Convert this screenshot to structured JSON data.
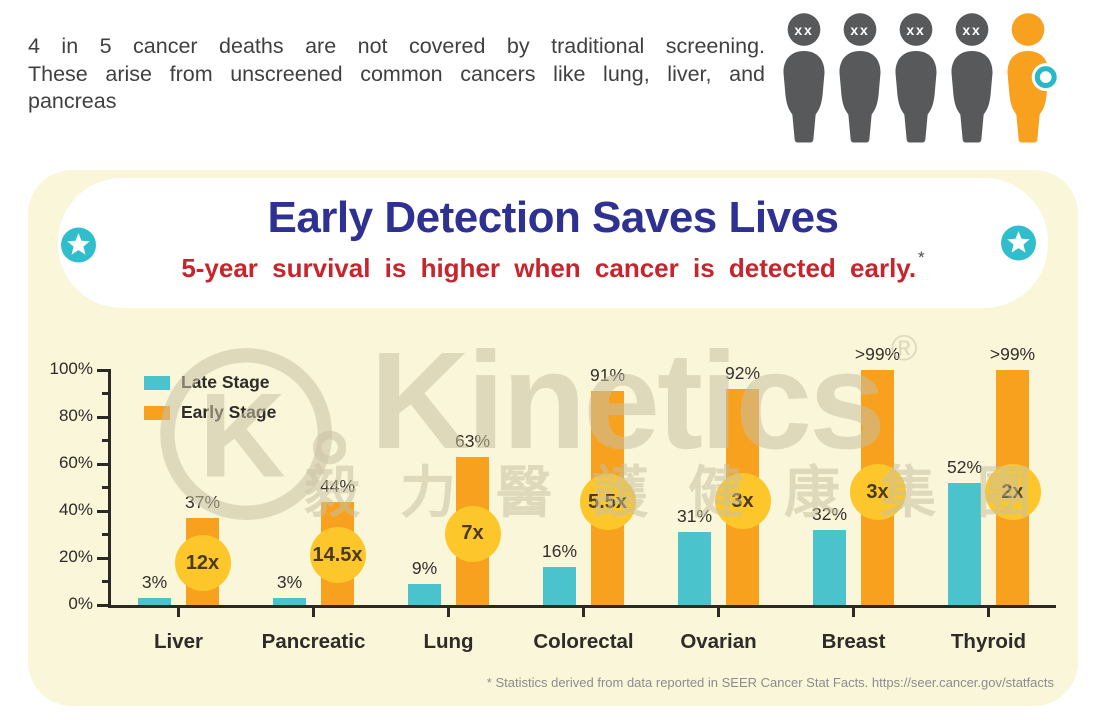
{
  "header": {
    "lines": [
      "4 in 5 cancer deaths are not covered by traditional screening.",
      "These arise from unscreened common cancers like lung, liver, and",
      "pancreas"
    ]
  },
  "people": {
    "figures": [
      {
        "style": "gray",
        "head_label": "xx",
        "badge": false
      },
      {
        "style": "gray",
        "head_label": "xx",
        "badge": false
      },
      {
        "style": "gray",
        "head_label": "xx",
        "badge": false
      },
      {
        "style": "gray",
        "head_label": "xx",
        "badge": false
      },
      {
        "style": "orange",
        "head_label": "",
        "badge": true
      }
    ]
  },
  "banner": {
    "title": "Early Detection Saves Lives",
    "subtitle": "5-year survival is higher when cancer is detected early.",
    "footnote_marker": "*"
  },
  "watermark": {
    "brand": "Kinetics",
    "registered": "®",
    "chinese": "毅力醫護健康集團"
  },
  "chart_data": {
    "type": "bar",
    "title": "Early Detection Saves Lives",
    "subtitle": "5-year survival is higher when cancer is detected early.*",
    "categories": [
      "Liver",
      "Pancreatic",
      "Lung",
      "Colorectal",
      "Ovarian",
      "Breast",
      "Thyroid"
    ],
    "series": [
      {
        "name": "Late Stage",
        "color": "#4BC3CD",
        "values": [
          3,
          3,
          9,
          16,
          31,
          32,
          52
        ],
        "labels": [
          "3%",
          "3%",
          "9%",
          "16%",
          "31%",
          "32%",
          "52%"
        ]
      },
      {
        "name": "Early Stage",
        "color": "#F7A11E",
        "values": [
          37,
          44,
          63,
          91,
          92,
          100,
          100
        ],
        "labels": [
          "37%",
          "44%",
          "63%",
          "91%",
          "92%",
          ">99%",
          ">99%"
        ]
      }
    ],
    "multipliers": [
      "12x",
      "14.5x",
      "7x",
      "5.5x",
      "3x",
      "3x",
      "2x"
    ],
    "ylabel": "",
    "ylim": [
      0,
      100
    ],
    "yticks": [
      "0%",
      "20%",
      "40%",
      "60%",
      "80%",
      "100%"
    ],
    "minor_ticks_every": 10,
    "grid": false,
    "legend_position": "top-left"
  },
  "footnote": "* Statistics derived from data reported in SEER Cancer Stat Facts. https://seer.cancer.gov/statfacts",
  "colors": {
    "late_stage": "#4BC3CD",
    "early_stage": "#F7A11E",
    "multiplier_circle": "#FDC72B",
    "multiplier_text": "#4A3A1D",
    "panel_bg": "#FAF6D9",
    "title": "#2E3192",
    "subtitle": "#C8242B",
    "person_gray": "#58595B",
    "person_orange": "#F7A11E",
    "badge_ring": "#29B8C8",
    "star_badge": "#30BECD",
    "axis": "#2B2826"
  }
}
